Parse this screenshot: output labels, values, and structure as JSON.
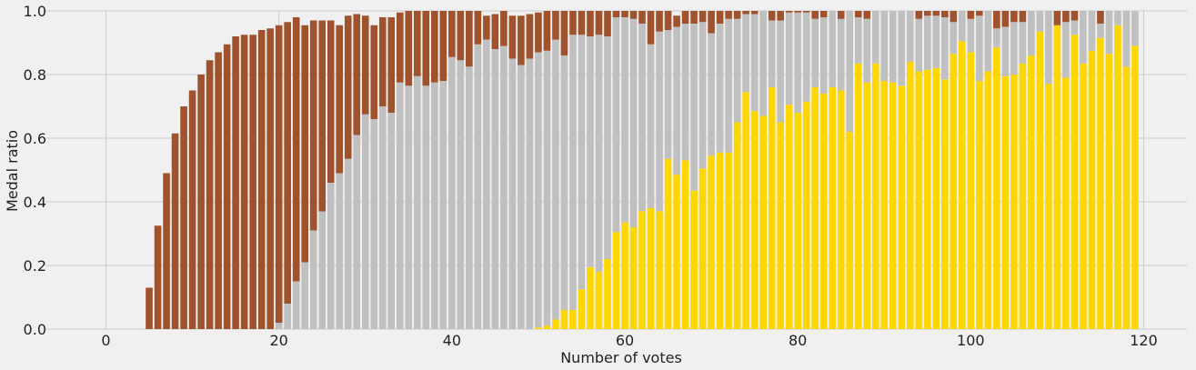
{
  "chart_data": {
    "type": "bar",
    "stacked": true,
    "title": "",
    "xlabel": "Number of votes",
    "ylabel": "Medal ratio",
    "xlim": [
      -7,
      125
    ],
    "ylim": [
      0,
      1
    ],
    "xticks": [
      0,
      20,
      40,
      60,
      80,
      100,
      120
    ],
    "yticks": [
      "0.0",
      "0.2",
      "0.4",
      "0.6",
      "0.8",
      "1.0"
    ],
    "grid": true,
    "legend": "none",
    "colors": {
      "bronze": "#a0522d",
      "silver": "#c0c0c0",
      "gold": "#ffd700",
      "background": "#f0f0f0",
      "grid": "#cbcbcb"
    },
    "x": [
      5,
      6,
      7,
      8,
      9,
      10,
      11,
      12,
      13,
      14,
      15,
      16,
      17,
      18,
      19,
      20,
      21,
      22,
      23,
      24,
      25,
      26,
      27,
      28,
      29,
      30,
      31,
      32,
      33,
      34,
      35,
      36,
      37,
      38,
      39,
      40,
      41,
      42,
      43,
      44,
      45,
      46,
      47,
      48,
      49,
      50,
      51,
      52,
      53,
      54,
      55,
      56,
      57,
      58,
      59,
      60,
      61,
      62,
      63,
      64,
      65,
      66,
      67,
      68,
      69,
      70,
      71,
      72,
      73,
      74,
      75,
      76,
      77,
      78,
      79,
      80,
      81,
      82,
      83,
      84,
      85,
      86,
      87,
      88,
      89,
      90,
      91,
      92,
      93,
      94,
      95,
      96,
      97,
      98,
      99,
      100,
      101,
      102,
      103,
      104,
      105,
      106,
      107,
      108,
      109,
      110,
      111,
      112,
      113,
      114,
      115,
      116,
      117,
      118,
      119
    ],
    "series": [
      {
        "values": [
          0,
          0,
          0,
          0,
          0,
          0,
          0,
          0,
          0,
          0,
          0,
          0,
          0,
          0,
          0,
          0,
          0,
          0,
          0,
          0,
          0,
          0,
          0,
          0,
          0,
          0,
          0,
          0,
          0,
          0,
          0,
          0,
          0,
          0,
          0,
          0,
          0,
          0,
          0,
          0,
          0,
          0,
          0,
          0,
          0,
          0.005,
          0.01,
          0.03,
          0.06,
          0.06,
          0.125,
          0.195,
          0.18,
          0.22,
          0.305,
          0.335,
          0.32,
          0.37,
          0.38,
          0.37,
          0.535,
          0.485,
          0.53,
          0.435,
          0.505,
          0.545,
          0.555,
          0.555,
          0.65,
          0.745,
          0.685,
          0.67,
          0.76,
          0.65,
          0.705,
          0.68,
          0.715,
          0.76,
          0.74,
          0.76,
          0.75,
          0.62,
          0.835,
          0.775,
          0.835,
          0.78,
          0.775,
          0.765,
          0.84,
          0.81,
          0.815,
          0.82,
          0.785,
          0.865,
          0.905,
          0.87,
          0.78,
          0.81,
          0.885,
          0.795,
          0.8,
          0.835,
          0.86,
          0.935,
          0.77,
          0.955,
          0.79,
          0.925,
          0.835,
          0.875,
          0.915,
          0.865,
          0.955,
          0.825,
          0.89
        ]
      },
      {
        "values": [
          0,
          0,
          0,
          0,
          0,
          0,
          0,
          0,
          0,
          0,
          0,
          0,
          0,
          0,
          0,
          0.02,
          0.08,
          0.15,
          0.21,
          0.31,
          0.37,
          0.46,
          0.49,
          0.535,
          0.61,
          0.675,
          0.66,
          0.7,
          0.68,
          0.775,
          0.765,
          0.795,
          0.765,
          0.775,
          0.78,
          0.855,
          0.845,
          0.825,
          0.895,
          0.91,
          0.88,
          0.89,
          0.85,
          0.83,
          0.85,
          0.865,
          0.865,
          0.88,
          0.8,
          0.865,
          0.8,
          0.725,
          0.745,
          0.7,
          0.675,
          0.645,
          0.655,
          0.59,
          0.515,
          0.565,
          0.405,
          0.465,
          0.43,
          0.525,
          0.46,
          0.385,
          0.405,
          0.42,
          0.325,
          0.245,
          0.305,
          0.33,
          0.21,
          0.32,
          0.29,
          0.315,
          0.28,
          0.215,
          0.24,
          0.24,
          0.225,
          0.38,
          0.145,
          0.2,
          0.165,
          0.22,
          0.225,
          0.235,
          0.16,
          0.165,
          0.17,
          0.165,
          0.195,
          0.1,
          0.095,
          0.105,
          0.205,
          0.19,
          0.06,
          0.155,
          0.165,
          0.13,
          0.14,
          0.065,
          0.23,
          0.0,
          0.175,
          0.045,
          0.165,
          0.125,
          0.045,
          0.135,
          0.045,
          0.175,
          0.11
        ]
      },
      {
        "values": [
          0.13,
          0.325,
          0.49,
          0.615,
          0.7,
          0.75,
          0.8,
          0.845,
          0.87,
          0.895,
          0.92,
          0.925,
          0.925,
          0.94,
          0.945,
          0.935,
          0.885,
          0.83,
          0.745,
          0.66,
          0.6,
          0.51,
          0.465,
          0.45,
          0.38,
          0.31,
          0.295,
          0.28,
          0.3,
          0.22,
          0.235,
          0.205,
          0.235,
          0.225,
          0.22,
          0.145,
          0.155,
          0.175,
          0.105,
          0.075,
          0.11,
          0.11,
          0.135,
          0.155,
          0.14,
          0.125,
          0.125,
          0.09,
          0.14,
          0.075,
          0.075,
          0.08,
          0.075,
          0.08,
          0.02,
          0.02,
          0.025,
          0.04,
          0.105,
          0.065,
          0.06,
          0.035,
          0.04,
          0.04,
          0.035,
          0.07,
          0.04,
          0.025,
          0.025,
          0.01,
          0.01,
          0,
          0.03,
          0.03,
          0.005,
          0.005,
          0.005,
          0.025,
          0.02,
          0,
          0.025,
          0,
          0.02,
          0.025,
          0,
          0,
          0,
          0,
          0,
          0.025,
          0.015,
          0.015,
          0.02,
          0.035,
          0,
          0.025,
          0.015,
          0,
          0.055,
          0.05,
          0.035,
          0.035,
          0,
          0,
          0,
          0.045,
          0.035,
          0.03,
          0,
          0,
          0.04,
          0,
          0,
          0,
          0
        ]
      }
    ]
  }
}
